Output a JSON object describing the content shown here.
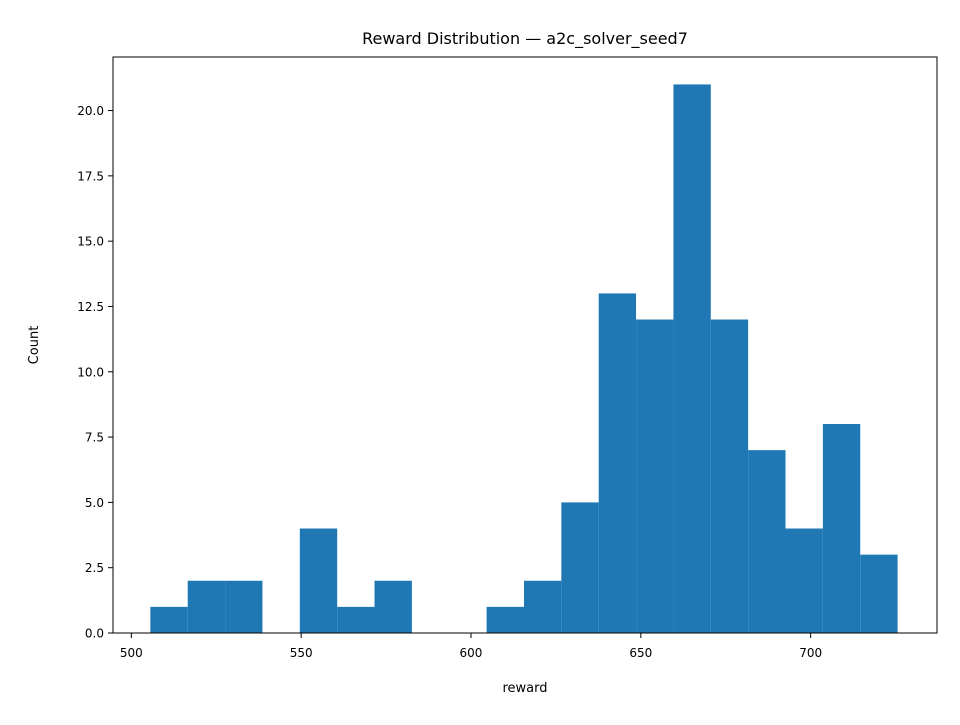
{
  "chart_data": {
    "type": "bar",
    "title": "Reward Distribution — a2c_solver_seed7",
    "xlabel": "reward",
    "ylabel": "Count",
    "xlim": [
      494.6,
      737.2
    ],
    "ylim": [
      0,
      22.05
    ],
    "grid": false,
    "bar_color": "#1f77b4",
    "bin_edges": [
      505.6,
      516.6,
      527.6,
      538.6,
      549.6,
      560.6,
      571.6,
      582.6,
      593.6,
      604.6,
      615.6,
      626.6,
      637.6,
      648.6,
      659.6,
      670.6,
      681.6,
      692.6,
      703.6,
      714.6,
      725.6
    ],
    "values": [
      1,
      2,
      2,
      0,
      4,
      1,
      2,
      0,
      0,
      1,
      2,
      5,
      13,
      12,
      21,
      12,
      7,
      4,
      8,
      3
    ],
    "x_ticks": [
      {
        "value": 500,
        "label": "500"
      },
      {
        "value": 550,
        "label": "550"
      },
      {
        "value": 600,
        "label": "600"
      },
      {
        "value": 650,
        "label": "650"
      },
      {
        "value": 700,
        "label": "700"
      }
    ],
    "y_ticks": [
      {
        "value": 0,
        "label": "0.0"
      },
      {
        "value": 2.5,
        "label": "2.5"
      },
      {
        "value": 5,
        "label": "5.0"
      },
      {
        "value": 7.5,
        "label": "7.5"
      },
      {
        "value": 10,
        "label": "10.0"
      },
      {
        "value": 12.5,
        "label": "12.5"
      },
      {
        "value": 15,
        "label": "15.0"
      },
      {
        "value": 17.5,
        "label": "17.5"
      },
      {
        "value": 20,
        "label": "20.0"
      }
    ]
  }
}
